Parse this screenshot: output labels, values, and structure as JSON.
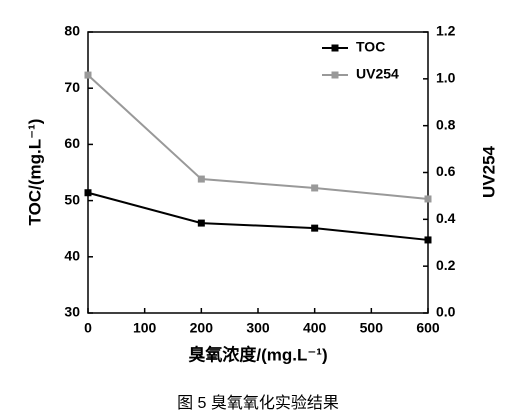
{
  "chart_data": {
    "type": "line",
    "xlabel": "臭氧浓度/(mg.L⁻¹)",
    "ylabel": "TOC/(mg.L⁻¹)",
    "y2label": "UV254",
    "caption": "图 5 臭氧氧化实验结果",
    "x": [
      0,
      200,
      400,
      600
    ],
    "series": [
      {
        "name": "TOC",
        "color": "#000000",
        "values": [
          51.4,
          46.0,
          45.1,
          43.0
        ]
      },
      {
        "name": "UV254",
        "color": "#999999",
        "axis": "y2",
        "values": [
          1.016,
          0.572,
          0.534,
          0.487
        ]
      }
    ],
    "xlim": [
      0,
      600
    ],
    "xticks": [
      0,
      100,
      200,
      300,
      400,
      500,
      600
    ],
    "ylim": [
      30,
      80
    ],
    "yticks": [
      30,
      40,
      50,
      60,
      70,
      80
    ],
    "y2lim": [
      0,
      1.2
    ],
    "y2ticks": [
      {
        "value": 0,
        "label": "0.0"
      },
      0.2,
      0.4,
      0.6,
      0.8,
      {
        "value": 1,
        "label": "1.0"
      },
      1.2
    ],
    "legend": "upper right",
    "grid": false
  }
}
